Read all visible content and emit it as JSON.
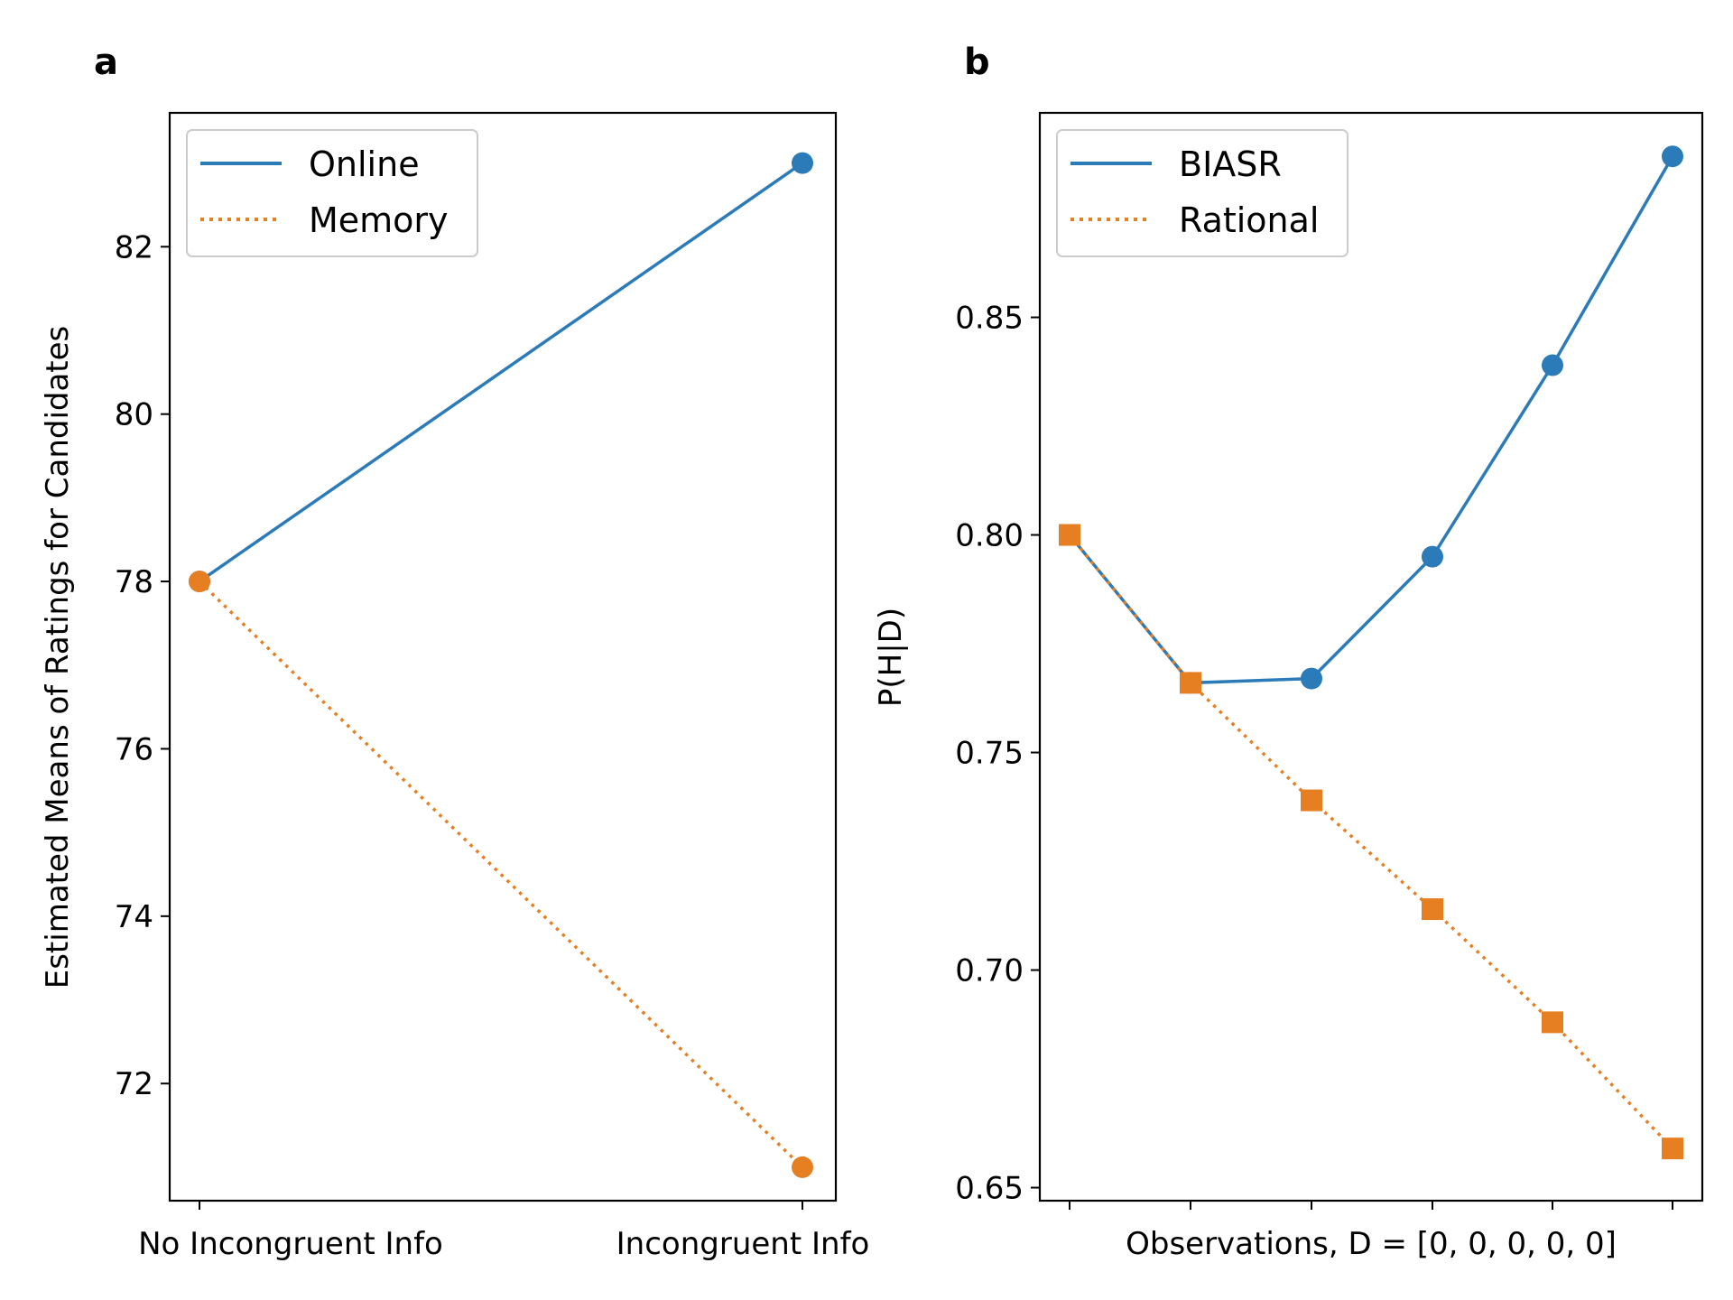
{
  "chart_data": [
    {
      "panel_label": "a",
      "type": "line",
      "categories": [
        "No Incongruent Info",
        "Incongruent Info"
      ],
      "series": [
        {
          "name": "Online",
          "values": [
            78,
            83
          ],
          "color": "#2b7bb9",
          "style": "solid",
          "marker": "circle"
        },
        {
          "name": "Memory",
          "values": [
            78,
            71
          ],
          "color": "#e67e22",
          "style": "dotted",
          "marker": "circle"
        }
      ],
      "xlabel": "",
      "ylabel": "Estimated Means of Ratings for Candidates",
      "ylim": [
        70.6,
        83.6
      ],
      "yticks": [
        "72",
        "74",
        "76",
        "78",
        "80",
        "82"
      ],
      "ytick_values": [
        72,
        74,
        76,
        78,
        80,
        82
      ],
      "legend_position": "upper-left",
      "grid": false
    },
    {
      "panel_label": "b",
      "type": "line",
      "x": [
        0,
        1,
        2,
        3,
        4,
        5
      ],
      "series": [
        {
          "name": "BIASR",
          "values": [
            0.8,
            0.766,
            0.767,
            0.795,
            0.839,
            0.887
          ],
          "color": "#2b7bb9",
          "style": "solid",
          "marker": "circle"
        },
        {
          "name": "Rational",
          "values": [
            0.8,
            0.766,
            0.739,
            0.714,
            0.688,
            0.659
          ],
          "color": "#e67e22",
          "style": "dotted",
          "marker": "square"
        }
      ],
      "xlabel": "Observations, D = [0, 0, 0, 0, 0]",
      "ylabel": "P(H|D)",
      "ylim": [
        0.647,
        0.897
      ],
      "yticks": [
        "0.65",
        "0.70",
        "0.75",
        "0.80",
        "0.85"
      ],
      "ytick_values": [
        0.65,
        0.7,
        0.75,
        0.8,
        0.85
      ],
      "legend_position": "upper-left",
      "grid": false
    }
  ]
}
